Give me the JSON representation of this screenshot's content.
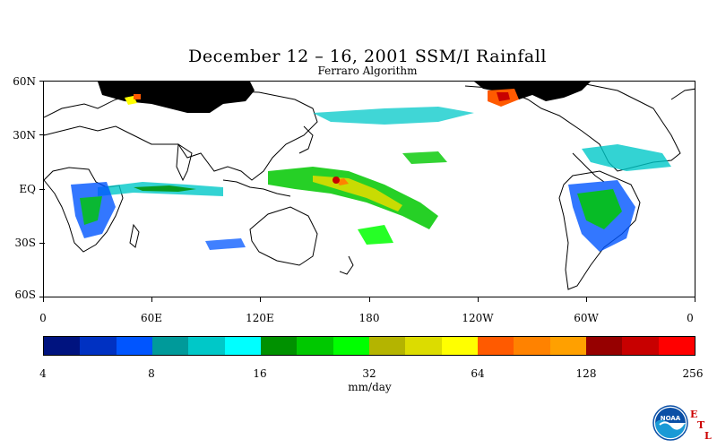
{
  "title": "December 12 – 16, 2001 SSM/I Rainfall",
  "subtitle": "Ferraro Algorithm",
  "lat_labels": [
    "60N",
    "30N",
    "EQ",
    "30S",
    "60S"
  ],
  "lon_labels": [
    "0",
    "60E",
    "120E",
    "180",
    "120W",
    "60W",
    "0"
  ],
  "colorbar": {
    "units": "mm/day",
    "tick_labels": [
      "4",
      "8",
      "16",
      "32",
      "64",
      "128",
      "256"
    ],
    "colors": [
      "#00137f",
      "#0031c2",
      "#0055ff",
      "#009a9a",
      "#00c8c8",
      "#00ffff",
      "#009100",
      "#00c800",
      "#00ff00",
      "#b4b400",
      "#dcdc00",
      "#ffff00",
      "#ff5a00",
      "#ff8200",
      "#ffa000",
      "#960000",
      "#c80000",
      "#ff0000"
    ]
  },
  "logo": {
    "icon": "noaa-logo",
    "text": "NOAA",
    "lab_letters": [
      "E",
      "T",
      "L"
    ]
  }
}
